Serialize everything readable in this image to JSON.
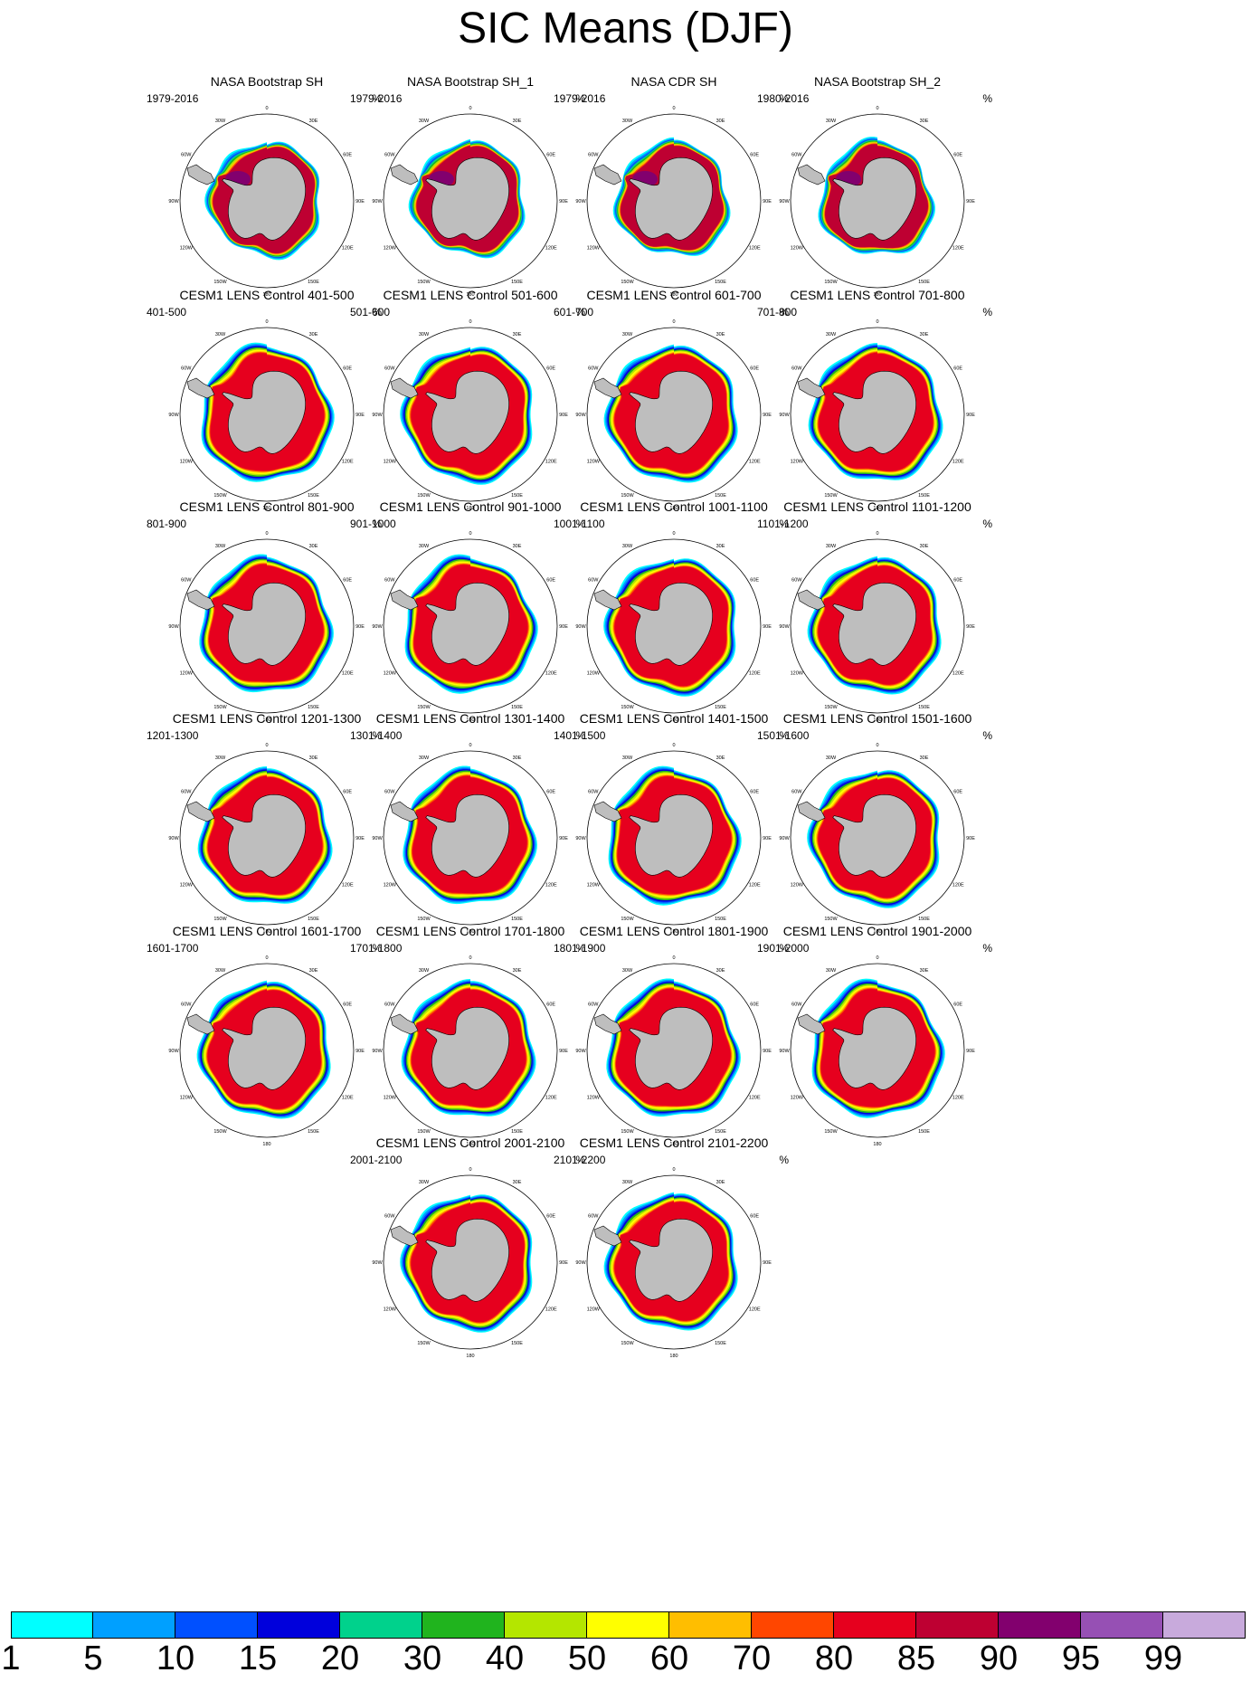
{
  "title": "SIC Means (DJF)",
  "unit": "%",
  "lon_labels": [
    "0",
    "30E",
    "60E",
    "90E",
    "120E",
    "150E",
    "180",
    "150W",
    "120W",
    "90W",
    "60W",
    "30W"
  ],
  "panels": [
    {
      "title": "NASA Bootstrap SH",
      "period": "1979-2016",
      "source": "obs"
    },
    {
      "title": "NASA Bootstrap SH_1",
      "period": "1979-2016",
      "source": "obs"
    },
    {
      "title": "NASA CDR SH",
      "period": "1979-2016",
      "source": "obs"
    },
    {
      "title": "NASA Bootstrap SH_2",
      "period": "1980-2016",
      "source": "obs"
    },
    {
      "title": "CESM1 LENS Control 401-500",
      "period": "401-500",
      "source": "model"
    },
    {
      "title": "CESM1 LENS Control 501-600",
      "period": "501-600",
      "source": "model"
    },
    {
      "title": "CESM1 LENS Control 601-700",
      "period": "601-700",
      "source": "model"
    },
    {
      "title": "CESM1 LENS Control 701-800",
      "period": "701-800",
      "source": "model"
    },
    {
      "title": "CESM1 LENS Control 801-900",
      "period": "801-900",
      "source": "model"
    },
    {
      "title": "CESM1 LENS Control 901-1000",
      "period": "901-1000",
      "source": "model"
    },
    {
      "title": "CESM1 LENS Control 1001-1100",
      "period": "1001-1100",
      "source": "model"
    },
    {
      "title": "CESM1 LENS Control 1101-1200",
      "period": "1101-1200",
      "source": "model"
    },
    {
      "title": "CESM1 LENS Control 1201-1300",
      "period": "1201-1300",
      "source": "model"
    },
    {
      "title": "CESM1 LENS Control 1301-1400",
      "period": "1301-1400",
      "source": "model"
    },
    {
      "title": "CESM1 LENS Control 1401-1500",
      "period": "1401-1500",
      "source": "model"
    },
    {
      "title": "CESM1 LENS Control 1501-1600",
      "period": "1501-1600",
      "source": "model"
    },
    {
      "title": "CESM1 LENS Control 1601-1700",
      "period": "1601-1700",
      "source": "model"
    },
    {
      "title": "CESM1 LENS Control 1701-1800",
      "period": "1701-1800",
      "source": "model"
    },
    {
      "title": "CESM1 LENS Control 1801-1900",
      "period": "1801-1900",
      "source": "model"
    },
    {
      "title": "CESM1 LENS Control 1901-2000",
      "period": "1901-2000",
      "source": "model"
    },
    {
      "title": "CESM1 LENS Control 2001-2100",
      "period": "2001-2100",
      "source": "model"
    },
    {
      "title": "CESM1 LENS Control 2101-2200",
      "period": "2101-2200",
      "source": "model"
    }
  ],
  "colorbar": {
    "labels": [
      "1",
      "5",
      "10",
      "15",
      "20",
      "30",
      "40",
      "50",
      "60",
      "70",
      "80",
      "85",
      "90",
      "95",
      "99"
    ],
    "colors": [
      "#00ffff",
      "#00a0ff",
      "#0050ff",
      "#0000dc",
      "#00d28c",
      "#20b41e",
      "#b4e600",
      "#ffff00",
      "#ffbe00",
      "#ff4600",
      "#e6001e",
      "#be0032",
      "#82006e",
      "#9650b4",
      "#c8aadc"
    ]
  },
  "style": {
    "land": "#bebebe",
    "ocean": "#ffffff",
    "outline": "#000000"
  }
}
